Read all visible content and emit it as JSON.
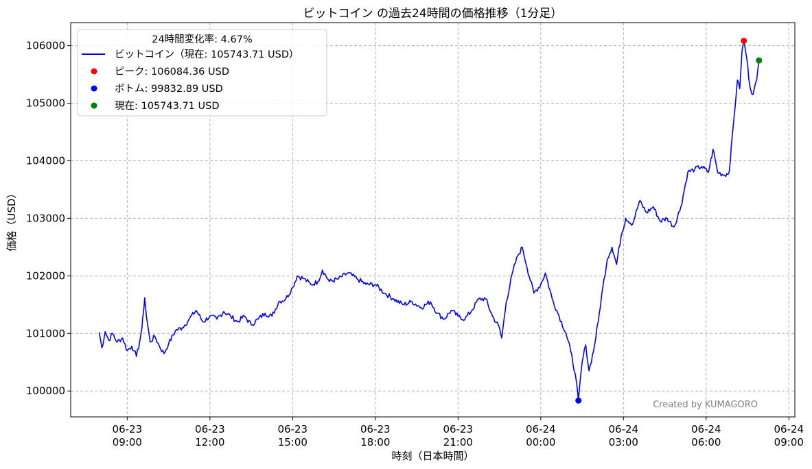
{
  "chart_data": {
    "type": "line",
    "title": "ビットコイン の過去24時間の価格推移（1分足）",
    "xlabel": "時刻（日本時間）",
    "ylabel": "価格（USD）",
    "x_range": [
      "2025-06-23 06:57",
      "2025-06-24 09:13"
    ],
    "ylim": [
      99550,
      106400
    ],
    "grid": true,
    "grid_style": "dashed",
    "x_ticks": [
      {
        "t": "2025-06-23 09:00",
        "line1": "06-23",
        "line2": "09:00"
      },
      {
        "t": "2025-06-23 12:00",
        "line1": "06-23",
        "line2": "12:00"
      },
      {
        "t": "2025-06-23 15:00",
        "line1": "06-23",
        "line2": "15:00"
      },
      {
        "t": "2025-06-23 18:00",
        "line1": "06-23",
        "line2": "18:00"
      },
      {
        "t": "2025-06-23 21:00",
        "line1": "06-23",
        "line2": "21:00"
      },
      {
        "t": "2025-06-24 00:00",
        "line1": "06-24",
        "line2": "00:00"
      },
      {
        "t": "2025-06-24 03:00",
        "line1": "06-24",
        "line2": "03:00"
      },
      {
        "t": "2025-06-24 06:00",
        "line1": "06-24",
        "line2": "06:00"
      },
      {
        "t": "2025-06-24 09:00",
        "line1": "06-24",
        "line2": "09:00"
      }
    ],
    "y_ticks": [
      100000,
      101000,
      102000,
      103000,
      104000,
      105000,
      106000
    ],
    "legend": {
      "position": "top-left",
      "title": "24時間変化率: 4.67%",
      "entries": [
        {
          "label": "ビットコイン（現在: 105743.71 USD）",
          "kind": "line",
          "color": "#0000ff"
        },
        {
          "label": "ピーク: 106084.36 USD",
          "kind": "point",
          "color": "#ff0000"
        },
        {
          "label": "ボトム: 99832.89 USD",
          "kind": "point",
          "color": "#0000ff"
        },
        {
          "label": "現在: 105743.71 USD",
          "kind": "point",
          "color": "#008000"
        }
      ]
    },
    "series": [
      {
        "color": "#0000ff",
        "points": [
          [
            "2025-06-23 07:59",
            101020
          ],
          [
            "2025-06-23 08:05",
            100750
          ],
          [
            "2025-06-23 08:12",
            101030
          ],
          [
            "2025-06-23 08:20",
            100880
          ],
          [
            "2025-06-23 08:28",
            101000
          ],
          [
            "2025-06-23 08:38",
            100850
          ],
          [
            "2025-06-23 08:50",
            100920
          ],
          [
            "2025-06-23 09:00",
            100700
          ],
          [
            "2025-06-23 09:10",
            100780
          ],
          [
            "2025-06-23 09:15",
            100700
          ],
          [
            "2025-06-23 09:20",
            100600
          ],
          [
            "2025-06-23 09:27",
            100850
          ],
          [
            "2025-06-23 09:32",
            101100
          ],
          [
            "2025-06-23 09:35",
            101350
          ],
          [
            "2025-06-23 09:38",
            101620
          ],
          [
            "2025-06-23 09:42",
            101280
          ],
          [
            "2025-06-23 09:50",
            100850
          ],
          [
            "2025-06-23 10:00",
            100950
          ],
          [
            "2025-06-23 10:10",
            100780
          ],
          [
            "2025-06-23 10:20",
            100650
          ],
          [
            "2025-06-23 10:30",
            100820
          ],
          [
            "2025-06-23 10:45",
            101050
          ],
          [
            "2025-06-23 11:00",
            101100
          ],
          [
            "2025-06-23 11:15",
            101250
          ],
          [
            "2025-06-23 11:30",
            101400
          ],
          [
            "2025-06-23 11:45",
            101200
          ],
          [
            "2025-06-23 12:00",
            101300
          ],
          [
            "2025-06-23 12:15",
            101250
          ],
          [
            "2025-06-23 12:30",
            101380
          ],
          [
            "2025-06-23 12:45",
            101300
          ],
          [
            "2025-06-23 13:00",
            101200
          ],
          [
            "2025-06-23 13:15",
            101300
          ],
          [
            "2025-06-23 13:30",
            101150
          ],
          [
            "2025-06-23 13:45",
            101250
          ],
          [
            "2025-06-23 14:00",
            101350
          ],
          [
            "2025-06-23 14:15",
            101300
          ],
          [
            "2025-06-23 14:30",
            101550
          ],
          [
            "2025-06-23 14:45",
            101600
          ],
          [
            "2025-06-23 15:00",
            101800
          ],
          [
            "2025-06-23 15:10",
            102000
          ],
          [
            "2025-06-23 15:25",
            101950
          ],
          [
            "2025-06-23 15:40",
            101850
          ],
          [
            "2025-06-23 15:55",
            101900
          ],
          [
            "2025-06-23 16:05",
            102100
          ],
          [
            "2025-06-23 16:20",
            101900
          ],
          [
            "2025-06-23 16:40",
            101950
          ],
          [
            "2025-06-23 17:00",
            102050
          ],
          [
            "2025-06-23 17:20",
            101950
          ],
          [
            "2025-06-23 17:40",
            101850
          ],
          [
            "2025-06-23 18:00",
            101850
          ],
          [
            "2025-06-23 18:20",
            101700
          ],
          [
            "2025-06-23 18:40",
            101600
          ],
          [
            "2025-06-23 19:00",
            101500
          ],
          [
            "2025-06-23 19:20",
            101550
          ],
          [
            "2025-06-23 19:40",
            101450
          ],
          [
            "2025-06-23 20:00",
            101550
          ],
          [
            "2025-06-23 20:15",
            101350
          ],
          [
            "2025-06-23 20:30",
            101250
          ],
          [
            "2025-06-23 20:45",
            101400
          ],
          [
            "2025-06-23 21:00",
            101300
          ],
          [
            "2025-06-23 21:15",
            101250
          ],
          [
            "2025-06-23 21:30",
            101400
          ],
          [
            "2025-06-23 21:45",
            101600
          ],
          [
            "2025-06-23 22:00",
            101600
          ],
          [
            "2025-06-23 22:15",
            101300
          ],
          [
            "2025-06-23 22:30",
            101100
          ],
          [
            "2025-06-23 22:35",
            100920
          ],
          [
            "2025-06-23 22:45",
            101550
          ],
          [
            "2025-06-23 23:00",
            102100
          ],
          [
            "2025-06-23 23:10",
            102350
          ],
          [
            "2025-06-23 23:20",
            102500
          ],
          [
            "2025-06-23 23:30",
            102150
          ],
          [
            "2025-06-23 23:45",
            101700
          ],
          [
            "2025-06-24 00:00",
            101850
          ],
          [
            "2025-06-24 00:10",
            102050
          ],
          [
            "2025-06-24 00:25",
            101600
          ],
          [
            "2025-06-24 00:40",
            101300
          ],
          [
            "2025-06-24 00:55",
            101000
          ],
          [
            "2025-06-24 01:05",
            100700
          ],
          [
            "2025-06-24 01:15",
            100300
          ],
          [
            "2025-06-24 01:22",
            99833
          ],
          [
            "2025-06-24 01:30",
            100500
          ],
          [
            "2025-06-24 01:38",
            100800
          ],
          [
            "2025-06-24 01:45",
            100350
          ],
          [
            "2025-06-24 01:55",
            100700
          ],
          [
            "2025-06-24 02:05",
            101200
          ],
          [
            "2025-06-24 02:15",
            101800
          ],
          [
            "2025-06-24 02:25",
            102300
          ],
          [
            "2025-06-24 02:35",
            102500
          ],
          [
            "2025-06-24 02:45",
            102200
          ],
          [
            "2025-06-24 02:55",
            102700
          ],
          [
            "2025-06-24 03:05",
            103000
          ],
          [
            "2025-06-24 03:20",
            102900
          ],
          [
            "2025-06-24 03:35",
            103300
          ],
          [
            "2025-06-24 03:50",
            103100
          ],
          [
            "2025-06-24 04:05",
            103200
          ],
          [
            "2025-06-24 04:20",
            102950
          ],
          [
            "2025-06-24 04:35",
            103000
          ],
          [
            "2025-06-24 04:50",
            102850
          ],
          [
            "2025-06-24 05:05",
            103200
          ],
          [
            "2025-06-24 05:20",
            103800
          ],
          [
            "2025-06-24 05:35",
            103850
          ],
          [
            "2025-06-24 05:50",
            103900
          ],
          [
            "2025-06-24 06:05",
            103800
          ],
          [
            "2025-06-24 06:15",
            104200
          ],
          [
            "2025-06-24 06:25",
            103800
          ],
          [
            "2025-06-24 06:40",
            103750
          ],
          [
            "2025-06-24 06:50",
            103800
          ],
          [
            "2025-06-24 07:00",
            104700
          ],
          [
            "2025-06-24 07:08",
            105400
          ],
          [
            "2025-06-24 07:13",
            105250
          ],
          [
            "2025-06-24 07:18",
            105900
          ],
          [
            "2025-06-24 07:22",
            106084
          ],
          [
            "2025-06-24 07:28",
            105800
          ],
          [
            "2025-06-24 07:35",
            105300
          ],
          [
            "2025-06-24 07:42",
            105150
          ],
          [
            "2025-06-24 07:50",
            105400
          ],
          [
            "2025-06-24 07:55",
            105744
          ]
        ]
      }
    ],
    "markers": [
      {
        "label": "peak",
        "t": "2025-06-24 07:22",
        "value": 106084.36,
        "color": "#ff0000"
      },
      {
        "label": "bottom",
        "t": "2025-06-24 01:22",
        "value": 99832.89,
        "color": "#0000ff"
      },
      {
        "label": "current",
        "t": "2025-06-24 07:55",
        "value": 105743.71,
        "color": "#008000"
      }
    ]
  },
  "watermark": "Created by KUMAGORO"
}
